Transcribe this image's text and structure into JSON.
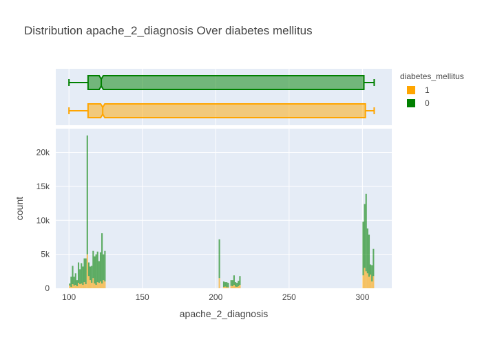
{
  "chart_data": {
    "type": "histogram",
    "title": "Distribution apache_2_diagnosis Over diabetes mellitus",
    "xlabel": "apache_2_diagnosis",
    "ylabel": "count",
    "xlim": [
      91,
      320
    ],
    "ylim": [
      0,
      23500
    ],
    "x_ticks": [
      100,
      150,
      200,
      250,
      300
    ],
    "y_ticks": [
      0,
      5000,
      10000,
      15000,
      20000
    ],
    "y_tick_labels": [
      "0",
      "5k",
      "10k",
      "15k",
      "20k"
    ],
    "barmode": "stack",
    "bin_width": 1,
    "legend": {
      "title": "diabetes_mellitus",
      "placement": "top-right",
      "entries": [
        "1",
        "0"
      ]
    },
    "series": [
      {
        "name": "1",
        "color": "#FFA500",
        "bins": [
          {
            "x": 100,
            "count": 400
          },
          {
            "x": 101,
            "count": 200
          },
          {
            "x": 102,
            "count": 600
          },
          {
            "x": 103,
            "count": 400
          },
          {
            "x": 104,
            "count": 500
          },
          {
            "x": 105,
            "count": 300
          },
          {
            "x": 106,
            "count": 800
          },
          {
            "x": 107,
            "count": 600
          },
          {
            "x": 108,
            "count": 700
          },
          {
            "x": 109,
            "count": 500
          },
          {
            "x": 110,
            "count": 900
          },
          {
            "x": 111,
            "count": 600
          },
          {
            "x": 112,
            "count": 5000
          },
          {
            "x": 113,
            "count": 1800
          },
          {
            "x": 114,
            "count": 1200
          },
          {
            "x": 115,
            "count": 800
          },
          {
            "x": 116,
            "count": 1500
          },
          {
            "x": 117,
            "count": 700
          },
          {
            "x": 118,
            "count": 500
          },
          {
            "x": 119,
            "count": 900
          },
          {
            "x": 120,
            "count": 800
          },
          {
            "x": 121,
            "count": 1000
          },
          {
            "x": 122,
            "count": 700
          },
          {
            "x": 123,
            "count": 1200
          },
          {
            "x": 124,
            "count": 1000
          },
          {
            "x": 202,
            "count": 1500
          },
          {
            "x": 205,
            "count": 200
          },
          {
            "x": 206,
            "count": 250
          },
          {
            "x": 207,
            "count": 150
          },
          {
            "x": 208,
            "count": 150
          },
          {
            "x": 210,
            "count": 350
          },
          {
            "x": 211,
            "count": 300
          },
          {
            "x": 212,
            "count": 500
          },
          {
            "x": 213,
            "count": 250
          },
          {
            "x": 214,
            "count": 200
          },
          {
            "x": 215,
            "count": 300
          },
          {
            "x": 216,
            "count": 500
          },
          {
            "x": 300,
            "count": 1900
          },
          {
            "x": 301,
            "count": 3000
          },
          {
            "x": 302,
            "count": 2500
          },
          {
            "x": 303,
            "count": 2200
          },
          {
            "x": 304,
            "count": 1700
          },
          {
            "x": 305,
            "count": 2000
          },
          {
            "x": 306,
            "count": 1000
          },
          {
            "x": 307,
            "count": 1800
          }
        ],
        "box": {
          "lower_fence": 100,
          "q1": 113,
          "median": 123,
          "q3": 302,
          "upper_fence": 308
        }
      },
      {
        "name": "0",
        "color": "#008000",
        "bins": [
          {
            "x": 100,
            "count": 300
          },
          {
            "x": 101,
            "count": 1500
          },
          {
            "x": 102,
            "count": 2700
          },
          {
            "x": 103,
            "count": 1300
          },
          {
            "x": 104,
            "count": 1700
          },
          {
            "x": 105,
            "count": 900
          },
          {
            "x": 106,
            "count": 3000
          },
          {
            "x": 107,
            "count": 2200
          },
          {
            "x": 108,
            "count": 3000
          },
          {
            "x": 109,
            "count": 2700
          },
          {
            "x": 110,
            "count": 3500
          },
          {
            "x": 111,
            "count": 3800
          },
          {
            "x": 112,
            "count": 17500
          },
          {
            "x": 113,
            "count": 2000
          },
          {
            "x": 114,
            "count": 2000
          },
          {
            "x": 115,
            "count": 2500
          },
          {
            "x": 116,
            "count": 4000
          },
          {
            "x": 117,
            "count": 4000
          },
          {
            "x": 118,
            "count": 4500
          },
          {
            "x": 119,
            "count": 4500
          },
          {
            "x": 120,
            "count": 3200
          },
          {
            "x": 121,
            "count": 4300
          },
          {
            "x": 122,
            "count": 7400
          },
          {
            "x": 123,
            "count": 3800
          },
          {
            "x": 124,
            "count": 4500
          },
          {
            "x": 202,
            "count": 5700
          },
          {
            "x": 205,
            "count": 800
          },
          {
            "x": 206,
            "count": 650
          },
          {
            "x": 207,
            "count": 750
          },
          {
            "x": 208,
            "count": 650
          },
          {
            "x": 210,
            "count": 850
          },
          {
            "x": 211,
            "count": 900
          },
          {
            "x": 212,
            "count": 1400
          },
          {
            "x": 213,
            "count": 650
          },
          {
            "x": 214,
            "count": 600
          },
          {
            "x": 215,
            "count": 800
          },
          {
            "x": 216,
            "count": 1300
          },
          {
            "x": 300,
            "count": 7900
          },
          {
            "x": 301,
            "count": 9400
          },
          {
            "x": 302,
            "count": 11400
          },
          {
            "x": 303,
            "count": 6600
          },
          {
            "x": 304,
            "count": 6200
          },
          {
            "x": 305,
            "count": 1500
          },
          {
            "x": 306,
            "count": 2400
          },
          {
            "x": 307,
            "count": 4000
          }
        ],
        "box": {
          "lower_fence": 100,
          "q1": 113,
          "median": 122,
          "q3": 301,
          "upper_fence": 308
        }
      }
    ]
  }
}
